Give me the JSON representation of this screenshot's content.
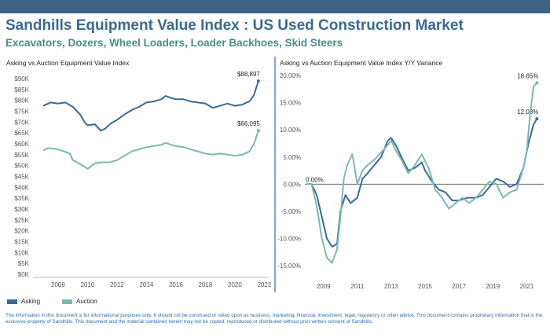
{
  "header": {
    "title": "Sandhills Equipment Value Index : US Used Construction Market",
    "subtitle": "Excavators, Dozers, Wheel Loaders, Loader Backhoes, Skid Steers",
    "bar_color": "#3d6487"
  },
  "legend": {
    "asking": "Asking",
    "auction": "Auction",
    "asking_color": "#3b6a96",
    "auction_color": "#7bb8b1"
  },
  "footer": {
    "text": "The information in this document is for informational purposes only.  It should not be construed or relied upon as business, marketing, financial, investment, legal, regulatory or other advice. This document contains proprietary information that is the exclusive property of Sandhills. This document and the material contained herein may not be copied, reproduced or distributed without prior written consent of Sandhills."
  },
  "chart_data": [
    {
      "type": "line",
      "title": "Asking vs Auction Equipment Value Index",
      "xlim": [
        2006.3,
        2022.3
      ],
      "ylim": [
        0,
        90000
      ],
      "x_ticks": [
        "2008",
        "2010",
        "2012",
        "2014",
        "2016",
        "2018",
        "2020",
        "2022"
      ],
      "y_ticks": [
        "$0K",
        "$5K",
        "$10K",
        "$15K",
        "$20K",
        "$25K",
        "$30K",
        "$35K",
        "$40K",
        "$45K",
        "$50K",
        "$55K",
        "$60K",
        "$65K",
        "$70K",
        "$75K",
        "$80K",
        "$85K",
        "$90K"
      ],
      "grid": false,
      "legend": "bottom-left",
      "series": [
        {
          "name": "Asking",
          "end_label": "$88,897",
          "points": [
            [
              2007.0,
              77500
            ],
            [
              2007.5,
              79000
            ],
            [
              2008.0,
              78500
            ],
            [
              2008.5,
              79000
            ],
            [
              2009.0,
              77000
            ],
            [
              2009.5,
              73500
            ],
            [
              2009.8,
              70000
            ],
            [
              2010.0,
              68500
            ],
            [
              2010.5,
              69000
            ],
            [
              2010.9,
              66000
            ],
            [
              2011.2,
              67000
            ],
            [
              2011.6,
              69500
            ],
            [
              2012.0,
              71000
            ],
            [
              2012.5,
              73500
            ],
            [
              2013.0,
              75500
            ],
            [
              2013.5,
              77000
            ],
            [
              2014.0,
              79000
            ],
            [
              2014.5,
              79500
            ],
            [
              2015.0,
              80500
            ],
            [
              2015.3,
              82000
            ],
            [
              2015.7,
              81000
            ],
            [
              2016.0,
              80500
            ],
            [
              2016.5,
              80500
            ],
            [
              2017.0,
              79500
            ],
            [
              2017.5,
              79000
            ],
            [
              2018.0,
              78500
            ],
            [
              2018.5,
              76500
            ],
            [
              2019.0,
              77500
            ],
            [
              2019.5,
              78500
            ],
            [
              2020.0,
              77500
            ],
            [
              2020.5,
              78000
            ],
            [
              2020.8,
              79000
            ],
            [
              2021.0,
              79500
            ],
            [
              2021.3,
              82500
            ],
            [
              2021.6,
              88897
            ]
          ]
        },
        {
          "name": "Auction",
          "end_label": "$66,095",
          "points": [
            [
              2007.0,
              57000
            ],
            [
              2007.3,
              58000
            ],
            [
              2008.0,
              57500
            ],
            [
              2008.4,
              56500
            ],
            [
              2008.8,
              55500
            ],
            [
              2009.0,
              52500
            ],
            [
              2009.4,
              51000
            ],
            [
              2009.8,
              49500
            ],
            [
              2010.0,
              48500
            ],
            [
              2010.5,
              51000
            ],
            [
              2011.0,
              51500
            ],
            [
              2011.5,
              51500
            ],
            [
              2012.0,
              52500
            ],
            [
              2012.5,
              54500
            ],
            [
              2013.0,
              56500
            ],
            [
              2013.5,
              57500
            ],
            [
              2014.0,
              58500
            ],
            [
              2014.5,
              59000
            ],
            [
              2015.0,
              59500
            ],
            [
              2015.3,
              60500
            ],
            [
              2015.7,
              59500
            ],
            [
              2016.0,
              59000
            ],
            [
              2016.5,
              58500
            ],
            [
              2017.0,
              57500
            ],
            [
              2017.5,
              56500
            ],
            [
              2018.0,
              55500
            ],
            [
              2018.5,
              55000
            ],
            [
              2019.0,
              55500
            ],
            [
              2019.5,
              55000
            ],
            [
              2020.0,
              54500
            ],
            [
              2020.5,
              55000
            ],
            [
              2021.0,
              56500
            ],
            [
              2021.3,
              60000
            ],
            [
              2021.6,
              66095
            ]
          ]
        }
      ]
    },
    {
      "type": "line",
      "title": "Asking vs Auction Equipment Value Index Y/Y Variance",
      "xlim": [
        2007.9,
        2022.0
      ],
      "ylim": [
        -16.0,
        20.0
      ],
      "x_ticks": [
        "2009",
        "2011",
        "2013",
        "2015",
        "2017",
        "2019",
        "2021"
      ],
      "y_ticks": [
        "-15.00%",
        "-10.00%",
        "-5.00%",
        "0.00%",
        "5.00%",
        "10.00%",
        "15.00%",
        "20.00%"
      ],
      "zero_label": "0.00%",
      "grid": false,
      "series": [
        {
          "name": "Asking",
          "end_label": "12.03%",
          "points": [
            [
              2008.0,
              0.0
            ],
            [
              2008.3,
              0.0
            ],
            [
              2008.6,
              -2.0
            ],
            [
              2008.9,
              -6.0
            ],
            [
              2009.2,
              -10.0
            ],
            [
              2009.5,
              -11.5
            ],
            [
              2009.8,
              -11.0
            ],
            [
              2010.0,
              -5.0
            ],
            [
              2010.3,
              -2.0
            ],
            [
              2010.6,
              -3.5
            ],
            [
              2011.0,
              -2.5
            ],
            [
              2011.3,
              1.0
            ],
            [
              2011.6,
              2.0
            ],
            [
              2012.0,
              3.5
            ],
            [
              2012.4,
              5.0
            ],
            [
              2012.8,
              8.0
            ],
            [
              2013.0,
              8.5
            ],
            [
              2013.3,
              7.0
            ],
            [
              2013.6,
              5.0
            ],
            [
              2014.0,
              2.5
            ],
            [
              2014.4,
              3.0
            ],
            [
              2014.8,
              4.0
            ],
            [
              2015.0,
              2.5
            ],
            [
              2015.4,
              0.5
            ],
            [
              2015.8,
              -1.0
            ],
            [
              2016.2,
              -1.5
            ],
            [
              2016.6,
              -3.0
            ],
            [
              2017.0,
              -3.0
            ],
            [
              2017.5,
              -2.5
            ],
            [
              2018.0,
              -2.5
            ],
            [
              2018.4,
              -2.0
            ],
            [
              2018.8,
              -0.5
            ],
            [
              2019.2,
              1.0
            ],
            [
              2019.6,
              0.5
            ],
            [
              2020.0,
              -0.5
            ],
            [
              2020.4,
              0.0
            ],
            [
              2020.8,
              3.0
            ],
            [
              2021.1,
              7.5
            ],
            [
              2021.4,
              11.0
            ],
            [
              2021.6,
              12.03
            ]
          ]
        },
        {
          "name": "Auction",
          "end_label": "18.65%",
          "points": [
            [
              2008.0,
              0.0
            ],
            [
              2008.3,
              0.0
            ],
            [
              2008.6,
              -4.0
            ],
            [
              2008.9,
              -10.0
            ],
            [
              2009.2,
              -13.5
            ],
            [
              2009.5,
              -14.5
            ],
            [
              2009.8,
              -12.0
            ],
            [
              2010.0,
              -6.0
            ],
            [
              2010.2,
              1.0
            ],
            [
              2010.4,
              3.5
            ],
            [
              2010.7,
              5.5
            ],
            [
              2011.0,
              0.0
            ],
            [
              2011.3,
              2.5
            ],
            [
              2011.6,
              3.5
            ],
            [
              2012.0,
              4.5
            ],
            [
              2012.3,
              5.5
            ],
            [
              2012.6,
              6.5
            ],
            [
              2013.0,
              8.0
            ],
            [
              2013.3,
              6.0
            ],
            [
              2013.6,
              4.5
            ],
            [
              2014.0,
              2.0
            ],
            [
              2014.4,
              3.5
            ],
            [
              2014.8,
              5.5
            ],
            [
              2015.2,
              3.0
            ],
            [
              2015.6,
              -1.0
            ],
            [
              2016.0,
              -2.5
            ],
            [
              2016.4,
              -4.5
            ],
            [
              2016.8,
              -3.5
            ],
            [
              2017.2,
              -2.5
            ],
            [
              2017.6,
              -3.5
            ],
            [
              2018.0,
              -2.5
            ],
            [
              2018.4,
              -1.0
            ],
            [
              2018.8,
              0.5
            ],
            [
              2019.2,
              0.0
            ],
            [
              2019.6,
              -2.5
            ],
            [
              2020.0,
              -1.5
            ],
            [
              2020.4,
              -1.0
            ],
            [
              2020.8,
              3.0
            ],
            [
              2021.0,
              6.0
            ],
            [
              2021.2,
              13.0
            ],
            [
              2021.4,
              18.0
            ],
            [
              2021.6,
              18.65
            ]
          ]
        }
      ]
    }
  ]
}
